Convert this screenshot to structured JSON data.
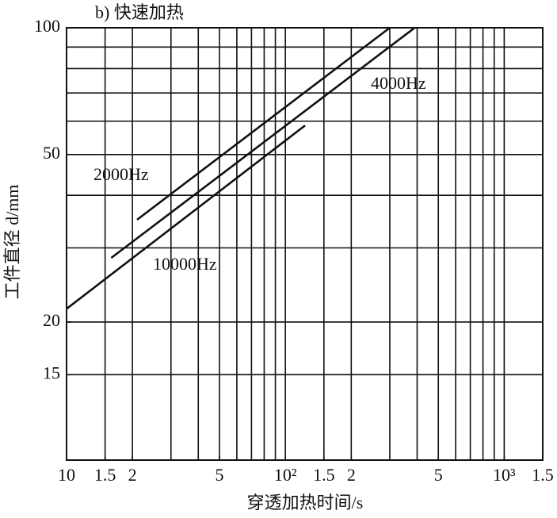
{
  "chart_data": {
    "type": "line",
    "title": "b) 快速加热",
    "x_label": "穿透加热时间/s",
    "y_label": "工件直径 d/mm",
    "log_x": true,
    "log_y": true,
    "grid": true,
    "xlim": [
      10,
      1500
    ],
    "ylim": [
      9.4,
      100
    ],
    "xticks": [
      10,
      {
        "value": 15,
        "label": "1.5"
      },
      {
        "value": 20,
        "label": "2"
      },
      {
        "value": 50,
        "label": "5"
      },
      {
        "value": 100,
        "label": "10²"
      },
      {
        "value": 150,
        "label": "1.5"
      },
      {
        "value": 200,
        "label": "2"
      },
      {
        "value": 500,
        "label": "5"
      },
      {
        "value": 1000,
        "label": "10³"
      },
      {
        "value": 1500,
        "label": "1.5"
      }
    ],
    "xgrid": [
      10,
      15,
      20,
      30,
      40,
      50,
      60,
      70,
      80,
      90,
      100,
      150,
      200,
      300,
      400,
      500,
      600,
      700,
      800,
      900,
      1000,
      1500
    ],
    "yticks": [
      15,
      20,
      50,
      100
    ],
    "ygrid": [
      15,
      20,
      30,
      40,
      50,
      60,
      70,
      80,
      90,
      100
    ],
    "series": [
      {
        "name": "2000Hz",
        "color": "#111111",
        "x": [
          21,
          300
        ],
        "values": [
          35,
          100
        ]
      },
      {
        "name": "4000Hz",
        "color": "#111111",
        "x": [
          16,
          390
        ],
        "values": [
          28.4,
          100
        ]
      },
      {
        "name": "10000Hz",
        "color": "#111111",
        "x": [
          10,
          123
        ],
        "values": [
          21.5,
          58.6
        ]
      }
    ]
  }
}
